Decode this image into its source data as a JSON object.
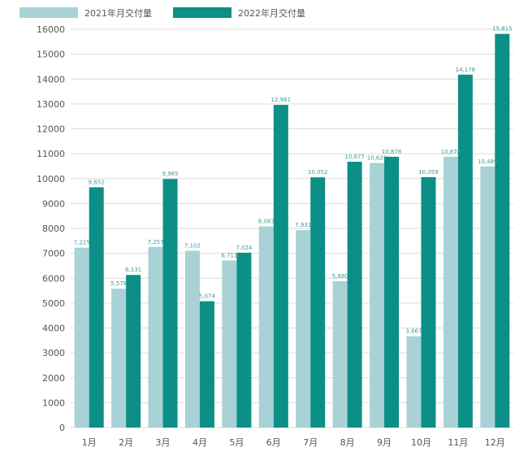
{
  "chart_data": {
    "type": "bar",
    "categories": [
      "1月",
      "2月",
      "3月",
      "4月",
      "5月",
      "6月",
      "7月",
      "8月",
      "9月",
      "10月",
      "11月",
      "12月"
    ],
    "series": [
      {
        "name": "2021年月交付量",
        "color": "#a8d2d5",
        "values": [
          7225,
          5578,
          7257,
          7102,
          6711,
          8083,
          7931,
          5880,
          10628,
          3667,
          10878,
          10489
        ],
        "labels": [
          "7,225",
          "5,578",
          "7,257",
          "7,102",
          "6,711",
          "8,083",
          "7,931",
          "5,880",
          "10,628",
          "3,667",
          "10,878",
          "10,489"
        ]
      },
      {
        "name": "2022年月交付量",
        "color": "#0b8f87",
        "values": [
          9652,
          6131,
          9985,
          5074,
          7024,
          12961,
          10052,
          10677,
          10878,
          10059,
          14178,
          15815
        ],
        "labels": [
          "9,652",
          "6,131",
          "9,985",
          "5,074",
          "7,024",
          "12,961",
          "10,052",
          "10,677",
          "10,878",
          "10,059",
          "14,178",
          "15,815"
        ]
      }
    ],
    "ylim": [
      0,
      16000
    ],
    "yticks": [
      "0",
      "1000",
      "2000",
      "3000",
      "4000",
      "5000",
      "6000",
      "7000",
      "8000",
      "9000",
      "10000",
      "11000",
      "12000",
      "13000",
      "14000",
      "15000",
      "16000"
    ],
    "grid": true,
    "legend": "top-left",
    "label_color": "#3a9e98",
    "axis_text_color": "#555555",
    "grid_color": "#dddddd"
  }
}
